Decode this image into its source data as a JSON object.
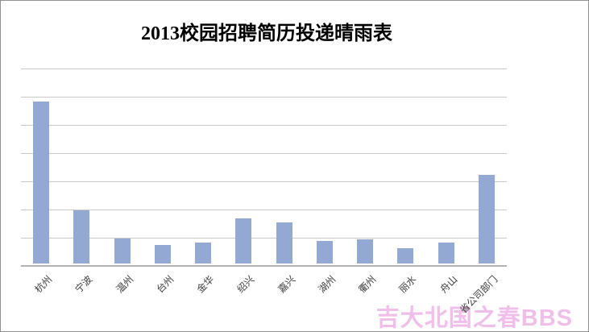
{
  "title": "2013校园招聘简历投递晴雨表",
  "watermark": "吉大北国之春BBS",
  "colors": {
    "background": "#ffffff",
    "border": "#919191",
    "title": "#000000",
    "bar": "#93a9d3",
    "gridline": "#c9c9c9",
    "axis": "#b3b3b3",
    "label": "#3d3d3d",
    "watermark": "#f0bfe9"
  },
  "chart_data": {
    "type": "bar",
    "title": "2013校园招聘简历投递晴雨表",
    "categories": [
      "杭州",
      "宁波",
      "温州",
      "台州",
      "金华",
      "绍兴",
      "嘉兴",
      "湖州",
      "衢州",
      "丽水",
      "舟山",
      "省公司部门"
    ],
    "values": [
      5.75,
      1.9,
      0.9,
      0.65,
      0.75,
      1.6,
      1.45,
      0.8,
      0.85,
      0.55,
      0.75,
      3.15
    ],
    "value_scale_note": "value axis has no visible tick labels; values estimated in gridline units",
    "xlabel": "",
    "ylabel": "",
    "ylim": [
      0,
      7
    ],
    "gridline_count": 7,
    "grid": true,
    "legend": false,
    "y_tick_labels_visible": false,
    "x_label_rotation_deg": 45,
    "bar_color": "#93a9d3"
  }
}
